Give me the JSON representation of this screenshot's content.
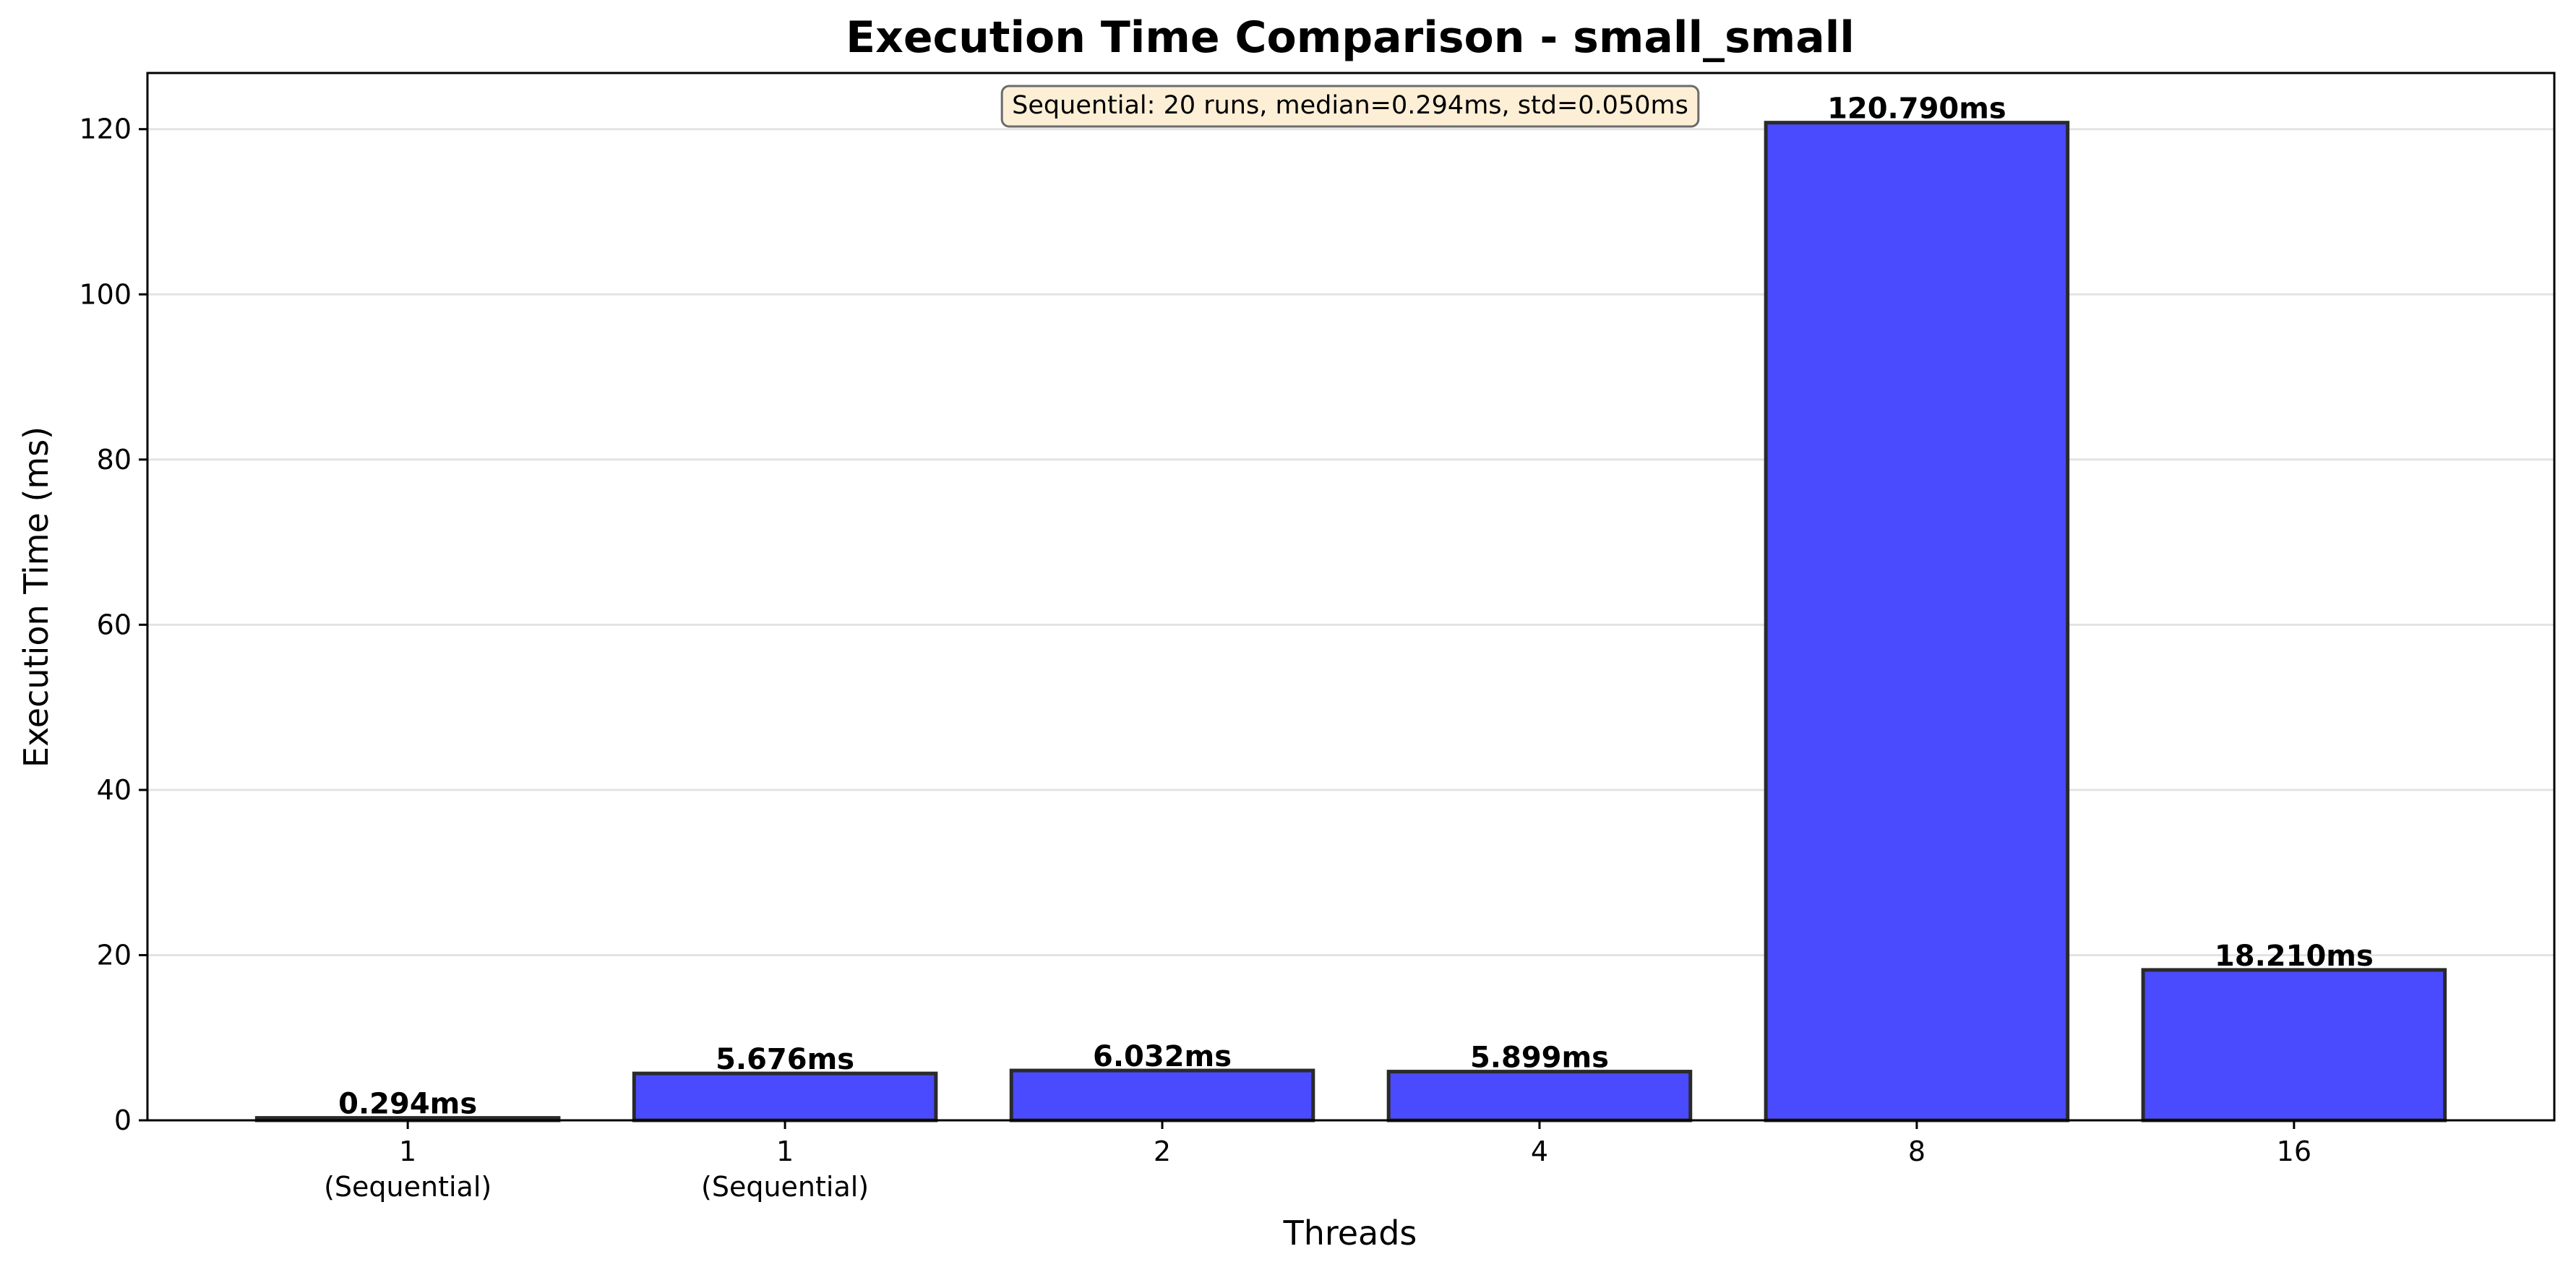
{
  "chart_data": {
    "type": "bar",
    "title": "Execution Time Comparison - small_small",
    "xlabel": "Threads",
    "ylabel": "Execution Time (ms)",
    "categories": [
      {
        "label": "1",
        "sublabel": "(Sequential)"
      },
      {
        "label": "1",
        "sublabel": "(Sequential)"
      },
      {
        "label": "2",
        "sublabel": ""
      },
      {
        "label": "4",
        "sublabel": ""
      },
      {
        "label": "8",
        "sublabel": ""
      },
      {
        "label": "16",
        "sublabel": ""
      }
    ],
    "values": [
      0.294,
      5.676,
      6.032,
      5.899,
      120.79,
      18.21
    ],
    "value_labels": [
      "0.294ms",
      "5.676ms",
      "6.032ms",
      "5.899ms",
      "120.790ms",
      "18.210ms"
    ],
    "bar_colors": [
      "#ff8c3a",
      "#4a4aff",
      "#4a4aff",
      "#4a4aff",
      "#4a4aff",
      "#4a4aff"
    ],
    "bar_edge_color": "#2a2a2a",
    "ylim": [
      0,
      126.8
    ],
    "yticks": [
      0,
      20,
      40,
      60,
      80,
      100,
      120
    ],
    "grid": "y",
    "annotation": "Sequential: 20 runs, median=0.294ms, std=0.050ms",
    "annotation_bg": "#fcefd6"
  }
}
